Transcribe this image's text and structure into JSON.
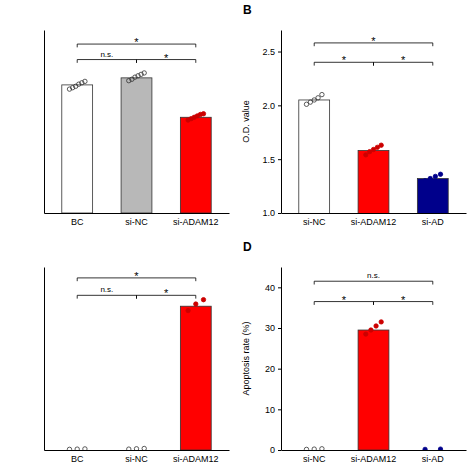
{
  "chart_data": [
    {
      "type": "bar",
      "categories": [
        "BC",
        "si-NC",
        "si-ADAM12"
      ],
      "values": [
        1.82,
        1.92,
        1.36
      ],
      "colors": [
        "#ffffff",
        "#b8b8b8",
        "#ff0000"
      ],
      "points": [
        {
          "values": [
            1.76,
            1.78,
            1.8,
            1.83,
            1.85,
            1.87
          ],
          "color": "#333333",
          "marker": "open-circle"
        },
        {
          "values": [
            1.88,
            1.9,
            1.93,
            1.95,
            1.97,
            1.99
          ],
          "color": "#333333",
          "marker": "open-circle"
        },
        {
          "values": [
            1.32,
            1.34,
            1.36,
            1.38,
            1.4,
            1.41
          ],
          "color": "#cc0000",
          "marker": "circle"
        }
      ],
      "ylim": [
        0.0,
        2.6
      ],
      "yticks": [],
      "tick_labels": "x",
      "brackets": [
        {
          "from": "BC",
          "to": "si-ADAM12",
          "y": 2.4,
          "label": "*"
        },
        {
          "from": "BC",
          "to": "si-NC",
          "y": 2.18,
          "label": "n.s."
        },
        {
          "from": "si-NC",
          "to": "si-ADAM12",
          "y": 2.18,
          "label": "*"
        }
      ]
    },
    {
      "type": "bar",
      "title": "B",
      "categories": [
        "si-NC",
        "si-ADAM12",
        "si-AD"
      ],
      "values": [
        2.05,
        1.58,
        1.32
      ],
      "colors": [
        "#ffffff",
        "#ff0000",
        "#00008b"
      ],
      "points": [
        {
          "values": [
            2.01,
            2.03,
            2.05,
            2.07,
            2.1
          ],
          "color": "#333333",
          "marker": "open-circle"
        },
        {
          "values": [
            1.54,
            1.57,
            1.59,
            1.61,
            1.63
          ],
          "color": "#cc0000",
          "marker": "circle"
        },
        {
          "values": [
            1.3,
            1.32,
            1.34,
            1.36
          ],
          "color": "#00008b",
          "marker": "circle"
        }
      ],
      "ylim": [
        1.0,
        2.7
      ],
      "yticks": [
        {
          "value": 1.0,
          "label": "1.0"
        },
        1.5,
        {
          "value": 2.0,
          "label": "2.0"
        },
        2.5
      ],
      "y_label": "O.D. value",
      "brackets": [
        {
          "from": "si-NC",
          "to": "si-AD",
          "y": 2.58,
          "label": "*"
        },
        {
          "from": "si-NC",
          "to": "si-ADAM12",
          "y": 2.4,
          "label": "*"
        },
        {
          "from": "si-ADAM12",
          "to": "si-AD",
          "y": 2.4,
          "label": "*"
        }
      ]
    },
    {
      "type": "bar",
      "categories": [
        "BC",
        "si-NC",
        "si-ADAM12"
      ],
      "values": [
        0.0,
        0.0,
        33.0
      ],
      "colors": [
        "#ffffff",
        "#ffffff",
        "#ff0000"
      ],
      "points": [
        {
          "values": [
            0.15,
            0.2,
            0.25
          ],
          "color": "#333333",
          "marker": "open-circle"
        },
        {
          "values": [
            0.2,
            0.28,
            0.35
          ],
          "color": "#333333",
          "marker": "open-circle"
        },
        {
          "values": [
            32.0,
            33.5,
            34.5
          ],
          "color": "#cc0000",
          "marker": "circle"
        }
      ],
      "ylim": [
        0,
        42
      ],
      "yticks": [],
      "tick_labels": "x",
      "brackets": [
        {
          "from": "BC",
          "to": "si-ADAM12",
          "y": 39.5,
          "label": "*"
        },
        {
          "from": "BC",
          "to": "si-NC",
          "y": 35.5,
          "label": "n.s."
        },
        {
          "from": "si-NC",
          "to": "si-ADAM12",
          "y": 35.5,
          "label": "*"
        }
      ]
    },
    {
      "type": "bar",
      "title": "D",
      "categories": [
        "si-NC",
        "si-ADAM12",
        "si-AD"
      ],
      "values": [
        0.0,
        29.5,
        0.0
      ],
      "colors": [
        "#ffffff",
        "#ff0000",
        "#00008b"
      ],
      "points": [
        {
          "values": [
            0.15,
            0.22,
            0.3
          ],
          "color": "#333333",
          "marker": "open-circle"
        },
        {
          "values": [
            28.5,
            29.5,
            30.5,
            31.5
          ],
          "color": "#cc0000",
          "marker": "circle"
        },
        {
          "values": [
            0.15,
            0.22
          ],
          "color": "#00008b",
          "marker": "circle"
        }
      ],
      "ylim": [
        0,
        45
      ],
      "yticks": [
        0,
        10,
        20,
        30,
        40
      ],
      "y_label": "Apoptosis rate (%)",
      "brackets": [
        {
          "from": "si-NC",
          "to": "si-AD",
          "y": 41.5,
          "label": "n.s."
        },
        {
          "from": "si-NC",
          "to": "si-ADAM12",
          "y": 36.5,
          "label": "*"
        },
        {
          "from": "si-ADAM12",
          "to": "si-AD",
          "y": 36.5,
          "label": "*"
        }
      ]
    }
  ]
}
